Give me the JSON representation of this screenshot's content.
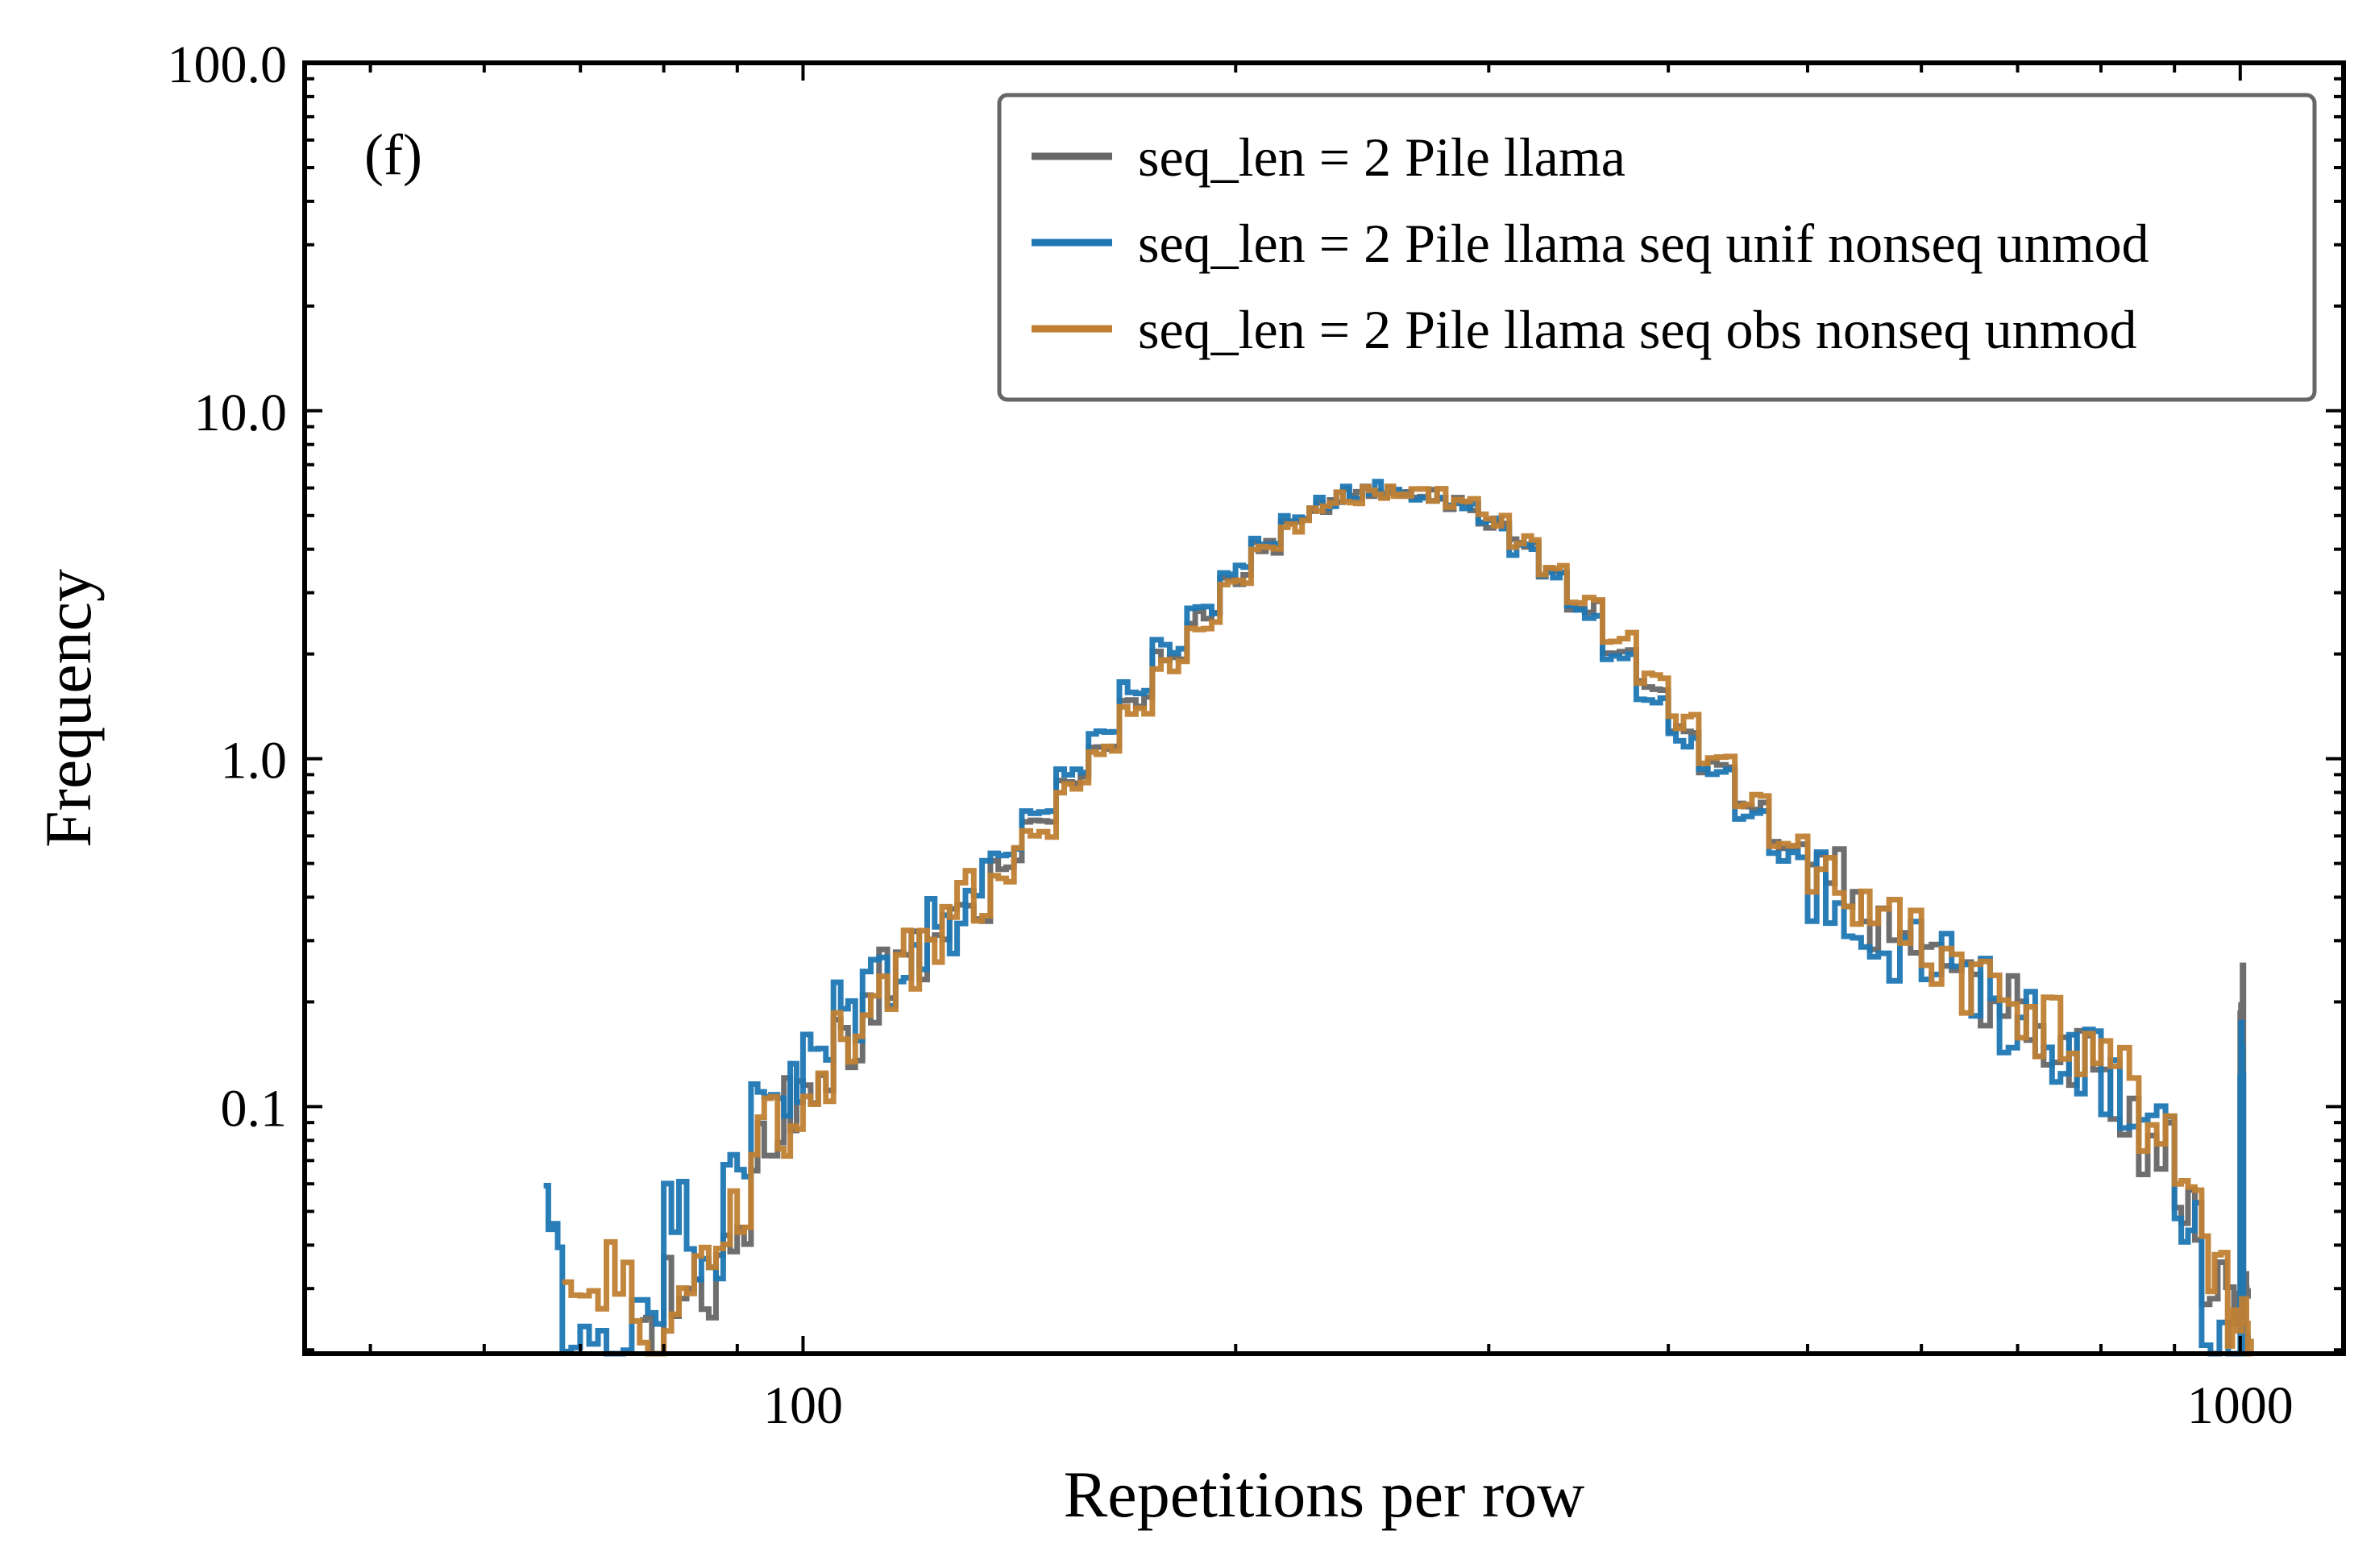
{
  "chart_data": {
    "type": "line",
    "panel_label": "(f)",
    "xlabel": "Repetitions per row",
    "ylabel": "Frequency",
    "xscale": "log",
    "yscale": "log",
    "xlim": [
      45,
      1180
    ],
    "ylim": [
      0.0195,
      100
    ],
    "x_tick_labels": [
      "100",
      "1000"
    ],
    "y_tick_labels": [
      "0.1",
      "1.0",
      "10.0",
      "100.0"
    ],
    "grid": false,
    "legend_position": "upper right",
    "series": [
      {
        "name": "seq_len = 2 Pile llama",
        "color": "#666666",
        "points": [
          [
            77,
            0.02
          ],
          [
            80,
            0.03
          ],
          [
            84,
            0.03
          ],
          [
            88,
            0.045
          ],
          [
            92,
            0.08
          ],
          [
            96,
            0.1
          ],
          [
            100,
            0.12
          ],
          [
            105,
            0.16
          ],
          [
            110,
            0.22
          ],
          [
            116,
            0.26
          ],
          [
            122,
            0.32
          ],
          [
            128,
            0.4
          ],
          [
            135,
            0.5
          ],
          [
            142,
            0.64
          ],
          [
            150,
            0.85
          ],
          [
            158,
            1.1
          ],
          [
            166,
            1.45
          ],
          [
            175,
            1.95
          ],
          [
            185,
            2.55
          ],
          [
            195,
            3.3
          ],
          [
            205,
            4.05
          ],
          [
            215,
            4.75
          ],
          [
            225,
            5.3
          ],
          [
            235,
            5.7
          ],
          [
            245,
            5.9
          ],
          [
            255,
            5.95
          ],
          [
            265,
            5.8
          ],
          [
            280,
            5.4
          ],
          [
            295,
            4.8
          ],
          [
            310,
            4.1
          ],
          [
            325,
            3.4
          ],
          [
            340,
            2.75
          ],
          [
            360,
            2.1
          ],
          [
            380,
            1.6
          ],
          [
            400,
            1.2
          ],
          [
            420,
            0.95
          ],
          [
            445,
            0.72
          ],
          [
            470,
            0.56
          ],
          [
            500,
            0.44
          ],
          [
            530,
            0.36
          ],
          [
            560,
            0.3
          ],
          [
            600,
            0.26
          ],
          [
            640,
            0.22
          ],
          [
            680,
            0.19
          ],
          [
            720,
            0.16
          ],
          [
            760,
            0.13
          ],
          [
            800,
            0.1
          ],
          [
            850,
            0.075
          ],
          [
            900,
            0.05
          ],
          [
            940,
            0.03
          ],
          [
            990,
            0.03
          ],
          [
            1000,
            0.2
          ],
          [
            1005,
            0.03
          ]
        ]
      },
      {
        "name": "seq_len = 2 Pile llama seq unif nonseq unmod",
        "color": "#1f77b4",
        "points": [
          [
            66,
            0.048
          ],
          [
            68,
            0.02
          ],
          [
            72,
            0.02
          ],
          [
            76,
            0.03
          ],
          [
            80,
            0.05
          ],
          [
            84,
            0.04
          ],
          [
            88,
            0.06
          ],
          [
            92,
            0.12
          ],
          [
            96,
            0.11
          ],
          [
            100,
            0.14
          ],
          [
            105,
            0.19
          ],
          [
            110,
            0.24
          ],
          [
            116,
            0.28
          ],
          [
            122,
            0.34
          ],
          [
            128,
            0.42
          ],
          [
            135,
            0.54
          ],
          [
            142,
            0.68
          ],
          [
            150,
            0.92
          ],
          [
            158,
            1.2
          ],
          [
            166,
            1.6
          ],
          [
            175,
            2.1
          ],
          [
            185,
            2.7
          ],
          [
            195,
            3.45
          ],
          [
            205,
            4.2
          ],
          [
            215,
            4.9
          ],
          [
            225,
            5.45
          ],
          [
            235,
            5.8
          ],
          [
            245,
            6.0
          ],
          [
            255,
            5.95
          ],
          [
            265,
            5.75
          ],
          [
            280,
            5.3
          ],
          [
            295,
            4.7
          ],
          [
            310,
            4.0
          ],
          [
            325,
            3.3
          ],
          [
            340,
            2.65
          ],
          [
            360,
            2.0
          ],
          [
            380,
            1.5
          ],
          [
            400,
            1.13
          ],
          [
            420,
            0.9
          ],
          [
            445,
            0.68
          ],
          [
            470,
            0.53
          ],
          [
            500,
            0.42
          ],
          [
            530,
            0.34
          ],
          [
            560,
            0.29
          ],
          [
            600,
            0.25
          ],
          [
            640,
            0.21
          ],
          [
            680,
            0.18
          ],
          [
            720,
            0.15
          ],
          [
            760,
            0.14
          ],
          [
            800,
            0.11
          ],
          [
            850,
            0.08
          ],
          [
            900,
            0.045
          ],
          [
            940,
            0.02
          ],
          [
            995,
            0.02
          ],
          [
            1000,
            0.15
          ],
          [
            1005,
            0.02
          ]
        ]
      },
      {
        "name": "seq_len = 2 Pile llama seq obs nonseq unmod",
        "color": "#c07f33",
        "points": [
          [
            68,
            0.025
          ],
          [
            72,
            0.033
          ],
          [
            76,
            0.02
          ],
          [
            80,
            0.025
          ],
          [
            84,
            0.035
          ],
          [
            88,
            0.05
          ],
          [
            92,
            0.09
          ],
          [
            96,
            0.09
          ],
          [
            100,
            0.11
          ],
          [
            105,
            0.15
          ],
          [
            110,
            0.2
          ],
          [
            116,
            0.25
          ],
          [
            122,
            0.3
          ],
          [
            128,
            0.38
          ],
          [
            135,
            0.48
          ],
          [
            142,
            0.62
          ],
          [
            150,
            0.82
          ],
          [
            158,
            1.06
          ],
          [
            166,
            1.4
          ],
          [
            175,
            1.85
          ],
          [
            185,
            2.45
          ],
          [
            195,
            3.2
          ],
          [
            205,
            3.95
          ],
          [
            215,
            4.65
          ],
          [
            225,
            5.2
          ],
          [
            235,
            5.6
          ],
          [
            245,
            5.8
          ],
          [
            255,
            5.85
          ],
          [
            265,
            5.75
          ],
          [
            280,
            5.4
          ],
          [
            295,
            4.85
          ],
          [
            310,
            4.2
          ],
          [
            325,
            3.5
          ],
          [
            340,
            2.85
          ],
          [
            360,
            2.2
          ],
          [
            380,
            1.7
          ],
          [
            400,
            1.28
          ],
          [
            420,
            1.0
          ],
          [
            445,
            0.76
          ],
          [
            470,
            0.58
          ],
          [
            500,
            0.46
          ],
          [
            530,
            0.38
          ],
          [
            560,
            0.32
          ],
          [
            600,
            0.27
          ],
          [
            640,
            0.23
          ],
          [
            680,
            0.2
          ],
          [
            720,
            0.17
          ],
          [
            760,
            0.14
          ],
          [
            800,
            0.12
          ],
          [
            850,
            0.09
          ],
          [
            900,
            0.06
          ],
          [
            940,
            0.035
          ],
          [
            980,
            0.025
          ],
          [
            1010,
            0.022
          ]
        ]
      }
    ]
  }
}
